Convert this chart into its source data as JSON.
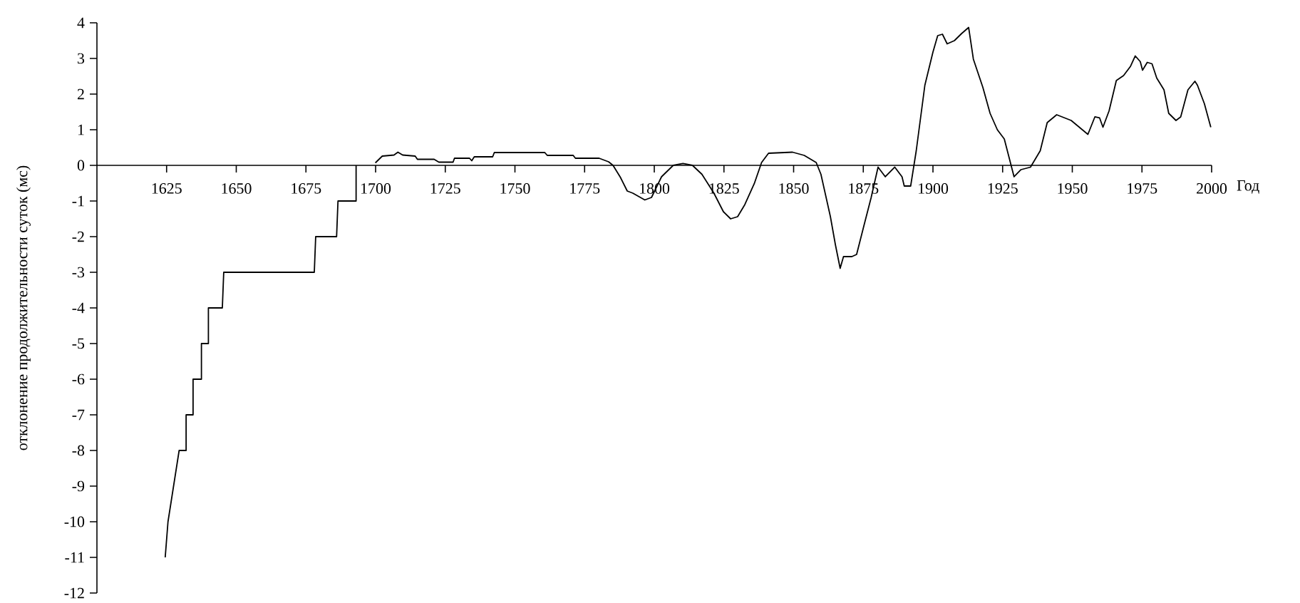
{
  "chart_data": {
    "type": "line",
    "xlabel": "Год",
    "ylabel": "отклонение продолжительности суток (мс)",
    "color": "#000000",
    "xlim": [
      1600,
      2000
    ],
    "ylim": [
      -12,
      4
    ],
    "xticks": [
      1625,
      1650,
      1675,
      1700,
      1725,
      1750,
      1775,
      1800,
      1825,
      1850,
      1875,
      1900,
      1925,
      1950,
      1975,
      2000
    ],
    "yticks": [
      -12,
      -11,
      -10,
      -9,
      -8,
      -7,
      -6,
      -5,
      -4,
      -3,
      -2,
      -1,
      0,
      1,
      2,
      3,
      4
    ],
    "x": [
      1624.5,
      1625.5,
      1627.5,
      1629.5,
      1632,
      1632,
      1634.5,
      1634.5,
      1637.5,
      1637.5,
      1640,
      1640,
      1645,
      1645.5,
      1678,
      1678.5,
      1686,
      1686.5,
      1693,
      1693,
      1696,
      1699.9,
      1702.4,
      1706.6,
      1708,
      1709.7,
      1714.2,
      1715,
      1721,
      1722.7,
      1727.8,
      1728.3,
      1733.7,
      1734.5,
      1735.4,
      1742,
      1742.6,
      1760.7,
      1761.6,
      1770.9,
      1771.7,
      1780.2,
      1783.6,
      1785.2,
      1787.8,
      1790.3,
      1792.3,
      1796.6,
      1799,
      1802.6,
      1806.8,
      1810.3,
      1813.7,
      1817.1,
      1821.4,
      1824.8,
      1827.4,
      1829.9,
      1832.5,
      1835.9,
      1838.5,
      1841,
      1849.6,
      1853.8,
      1858.1,
      1859.8,
      1863.2,
      1865,
      1866.7,
      1867.9,
      1870.9,
      1872.6,
      1875.2,
      1877.8,
      1880.3,
      1882.9,
      1886.3,
      1888.9,
      1889.7,
      1892,
      1894,
      1897.1,
      1900,
      1901.7,
      1903.4,
      1905.1,
      1907.7,
      1910.3,
      1912.8,
      1914.5,
      1917.9,
      1920.5,
      1923.1,
      1925.6,
      1929.1,
      1931.6,
      1935,
      1938.5,
      1941,
      1944.4,
      1949.6,
      1955.6,
      1958.1,
      1959.8,
      1961,
      1963.2,
      1965.8,
      1968.4,
      1970.9,
      1972.6,
      1974.4,
      1975.2,
      1976.9,
      1978.6,
      1980.3,
      1982.9,
      1984.6,
      1987.2,
      1988.9,
      1991.5,
      1994,
      1994.9,
      1997.4,
      1999.7
    ],
    "values": [
      -11,
      -10,
      -9,
      -8,
      -8,
      -7,
      -7,
      -6,
      -6,
      -5,
      -5,
      -4,
      -4,
      -3,
      -3,
      -2,
      -2,
      -1,
      -1,
      0,
      null,
      0.07,
      0.26,
      0.29,
      0.37,
      0.29,
      0.26,
      0.17,
      0.17,
      0.09,
      0.09,
      0.2,
      0.2,
      0.13,
      0.24,
      0.24,
      0.36,
      0.36,
      0.28,
      0.28,
      0.2,
      0.2,
      0.1,
      0,
      -0.33,
      -0.72,
      -0.78,
      -0.97,
      -0.9,
      -0.32,
      0,
      0.05,
      0,
      -0.25,
      -0.78,
      -1.3,
      -1.5,
      -1.44,
      -1.1,
      -0.51,
      0.08,
      0.34,
      0.37,
      0.28,
      0.08,
      -0.25,
      -1.44,
      -2.23,
      -2.89,
      -2.56,
      -2.56,
      -2.5,
      -1.7,
      -0.91,
      -0.05,
      -0.32,
      -0.05,
      -0.32,
      -0.58,
      -0.58,
      0.41,
      2.25,
      3.18,
      3.64,
      3.68,
      3.41,
      3.5,
      3.7,
      3.87,
      2.98,
      2.19,
      1.46,
      1.0,
      0.74,
      -0.32,
      -0.12,
      -0.05,
      0.41,
      1.2,
      1.42,
      1.26,
      0.87,
      1.36,
      1.33,
      1.07,
      1.53,
      2.38,
      2.52,
      2.78,
      3.07,
      2.91,
      2.67,
      2.89,
      2.85,
      2.45,
      2.12,
      1.46,
      1.26,
      1.36,
      2.12,
      2.36,
      2.25,
      1.73,
      1.07
    ]
  }
}
